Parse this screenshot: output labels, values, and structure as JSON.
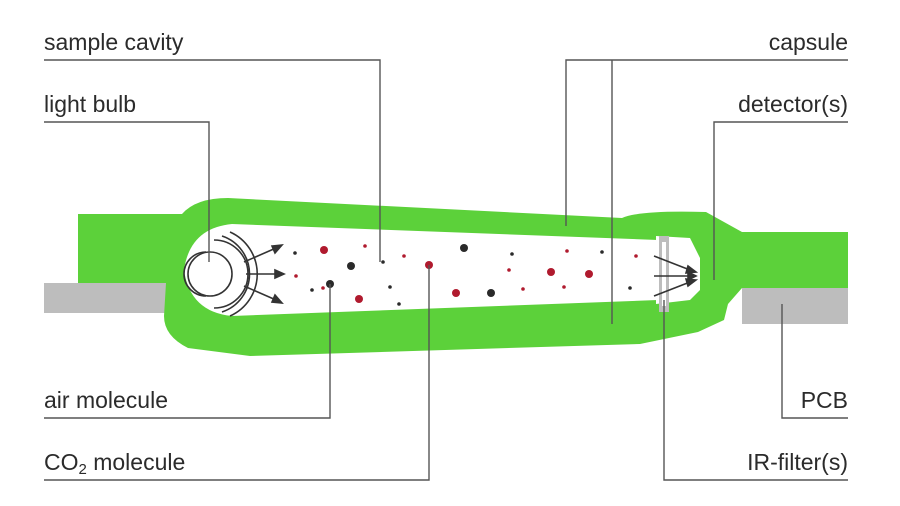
{
  "labels": {
    "sample_cavity": "sample cavity",
    "light_bulb": "light bulb",
    "air_molecule": "air molecule",
    "co2_molecule_prefix": "CO",
    "co2_molecule_sub": "2",
    "co2_molecule_suffix": " molecule",
    "capsule": "capsule",
    "detector": "detector(s)",
    "pcb": "PCB",
    "ir_filter": "IR-filter(s)"
  },
  "colors": {
    "capsule_green": "#5cd13a",
    "gray_part": "#bdbdbd",
    "line": "#555555",
    "co2_red": "#b01a2e",
    "air_dark": "#2a2a2a"
  }
}
